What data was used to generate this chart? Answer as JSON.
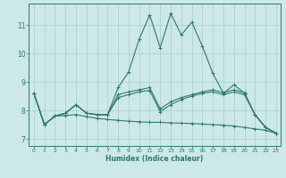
{
  "xlabel": "Humidex (Indice chaleur)",
  "bg_color": "#cce8e8",
  "line_color": "#2d7a6e",
  "grid_color": "#aacccc",
  "xlim": [
    -0.5,
    23.4
  ],
  "ylim": [
    6.75,
    11.75
  ],
  "xticks": [
    0,
    1,
    2,
    3,
    4,
    5,
    6,
    7,
    8,
    9,
    10,
    11,
    12,
    13,
    14,
    15,
    16,
    17,
    18,
    19,
    20,
    21,
    22,
    23
  ],
  "yticks": [
    7,
    8,
    9,
    10,
    11
  ],
  "lines": [
    {
      "x": [
        0,
        1,
        2,
        3,
        4,
        5,
        6,
        7,
        8,
        9,
        10,
        11,
        12,
        13,
        14,
        15,
        16,
        17,
        18,
        19,
        20,
        21,
        22,
        23
      ],
      "y": [
        8.6,
        7.5,
        7.8,
        7.9,
        8.2,
        7.9,
        7.85,
        7.85,
        8.8,
        9.35,
        10.5,
        11.35,
        10.2,
        11.4,
        10.65,
        11.1,
        10.25,
        9.3,
        8.6,
        8.9,
        8.6,
        7.85,
        7.4,
        7.2
      ]
    },
    {
      "x": [
        0,
        1,
        2,
        3,
        4,
        5,
        6,
        7,
        8,
        9,
        10,
        11,
        12,
        13,
        14,
        15,
        16,
        17,
        18,
        19,
        20,
        21,
        22,
        23
      ],
      "y": [
        8.6,
        7.5,
        7.8,
        7.9,
        8.2,
        7.9,
        7.85,
        7.85,
        8.55,
        8.65,
        8.72,
        8.8,
        8.05,
        8.3,
        8.45,
        8.55,
        8.65,
        8.72,
        8.62,
        8.72,
        8.62,
        7.85,
        7.4,
        7.2
      ]
    },
    {
      "x": [
        0,
        1,
        2,
        3,
        4,
        5,
        6,
        7,
        8,
        9,
        10,
        11,
        12,
        13,
        14,
        15,
        16,
        17,
        18,
        19,
        20,
        21,
        22,
        23
      ],
      "y": [
        8.6,
        7.5,
        7.8,
        7.9,
        8.2,
        7.9,
        7.85,
        7.85,
        8.45,
        8.55,
        8.65,
        8.7,
        7.95,
        8.2,
        8.38,
        8.5,
        8.6,
        8.65,
        8.55,
        8.65,
        8.55,
        7.85,
        7.4,
        7.2
      ]
    },
    {
      "x": [
        0,
        1,
        2,
        3,
        4,
        5,
        6,
        7,
        8,
        9,
        10,
        11,
        12,
        13,
        14,
        15,
        16,
        17,
        18,
        19,
        20,
        21,
        22,
        23
      ],
      "y": [
        8.6,
        7.5,
        7.8,
        7.82,
        7.85,
        7.78,
        7.72,
        7.68,
        7.65,
        7.62,
        7.6,
        7.58,
        7.58,
        7.56,
        7.55,
        7.54,
        7.52,
        7.5,
        7.48,
        7.45,
        7.4,
        7.35,
        7.3,
        7.2
      ]
    }
  ]
}
